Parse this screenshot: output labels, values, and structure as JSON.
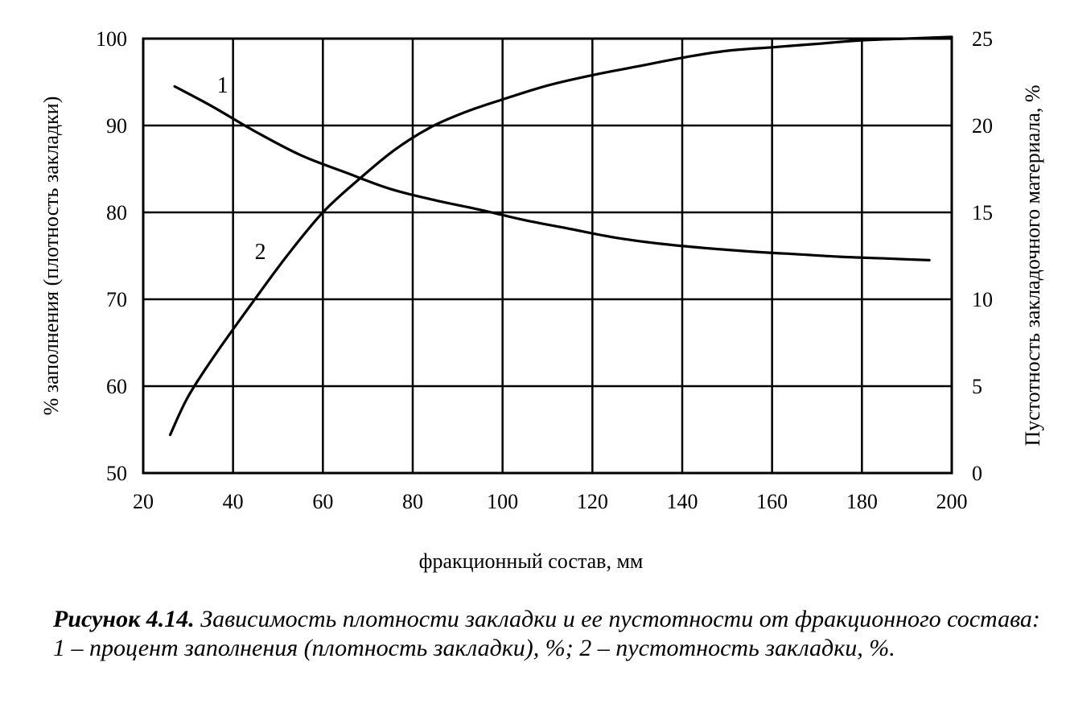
{
  "chart_data": {
    "type": "line",
    "xlabel": "фракционный состав, мм",
    "ylabel": "% заполнения (плотность закладки)",
    "y2label": "Пустотность закладочного материала, %",
    "xlim": [
      20,
      200
    ],
    "ylim": [
      50,
      100
    ],
    "y2lim": [
      0,
      25
    ],
    "grid": true,
    "x_ticks": [
      "20",
      "40",
      "60",
      "80",
      "100",
      "120",
      "140",
      "160",
      "180",
      "200"
    ],
    "y_ticks": [
      "50",
      "60",
      "70",
      "80",
      "90",
      "100"
    ],
    "y2_ticks": [
      "0",
      "5",
      "10",
      "15",
      "20",
      "25"
    ],
    "series": [
      {
        "name": "1",
        "axis": "left",
        "x": [
          27,
          35,
          45,
          55,
          65,
          75,
          85,
          95,
          105,
          115,
          125,
          135,
          145,
          155,
          165,
          175,
          185,
          195
        ],
        "values": [
          94.5,
          92.3,
          89.3,
          86.6,
          84.6,
          82.7,
          81.4,
          80.3,
          79.1,
          78.1,
          77.1,
          76.4,
          75.9,
          75.5,
          75.2,
          74.9,
          74.7,
          74.5
        ]
      },
      {
        "name": "2",
        "axis": "right",
        "x": [
          26,
          30,
          36,
          44,
          52,
          60,
          68,
          76,
          84,
          92,
          100,
          110,
          120,
          130,
          140,
          150,
          160,
          170,
          180,
          190,
          200
        ],
        "values": [
          2.2,
          4.4,
          6.8,
          9.7,
          12.5,
          15.0,
          16.9,
          18.6,
          19.9,
          20.8,
          21.5,
          22.3,
          22.9,
          23.4,
          23.9,
          24.3,
          24.5,
          24.7,
          24.9,
          25.0,
          25.1
        ]
      }
    ]
  },
  "caption": {
    "number": "Рисунок 4.14.",
    "text": "Зависимость плотности закладки и ее пустотности от фракционного состава: 1 – процент заполнения (плотность закладки), %; 2 – пустотность закладки, %."
  }
}
